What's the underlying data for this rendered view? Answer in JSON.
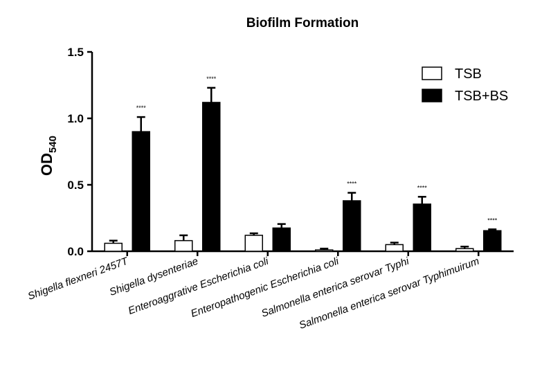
{
  "chart_data": {
    "type": "bar",
    "title": "Biofilm Formation",
    "ylabel": "OD",
    "ylabel_sub": "540",
    "xlabel": "",
    "ylim": [
      0,
      1.5
    ],
    "yticks": [
      "0.0",
      "0.5",
      "1.0",
      "1.5"
    ],
    "categories": [
      "Shigella flexneri  2457T",
      "Shigella dysenteriae",
      "Enteroaggrative Escherichia coli",
      "Enteropathogenic  Escherichia coli",
      "Salmonella enterica   serovar Typhi",
      "Salmonella enterica   serovar Typhimuirum"
    ],
    "series": [
      {
        "name": "TSB",
        "values": [
          0.06,
          0.08,
          0.12,
          0.01,
          0.05,
          0.02
        ],
        "errors": [
          0.02,
          0.04,
          0.015,
          0.01,
          0.015,
          0.015
        ],
        "color": "#ffffff"
      },
      {
        "name": "TSB+BS",
        "values": [
          0.9,
          1.12,
          0.175,
          0.38,
          0.355,
          0.155
        ],
        "errors": [
          0.11,
          0.11,
          0.03,
          0.06,
          0.055,
          0.01
        ],
        "color": "#000000"
      }
    ],
    "significance": [
      "****",
      "****",
      "",
      "****",
      "****",
      "****"
    ],
    "legend_position": "top-right",
    "grid": false
  }
}
